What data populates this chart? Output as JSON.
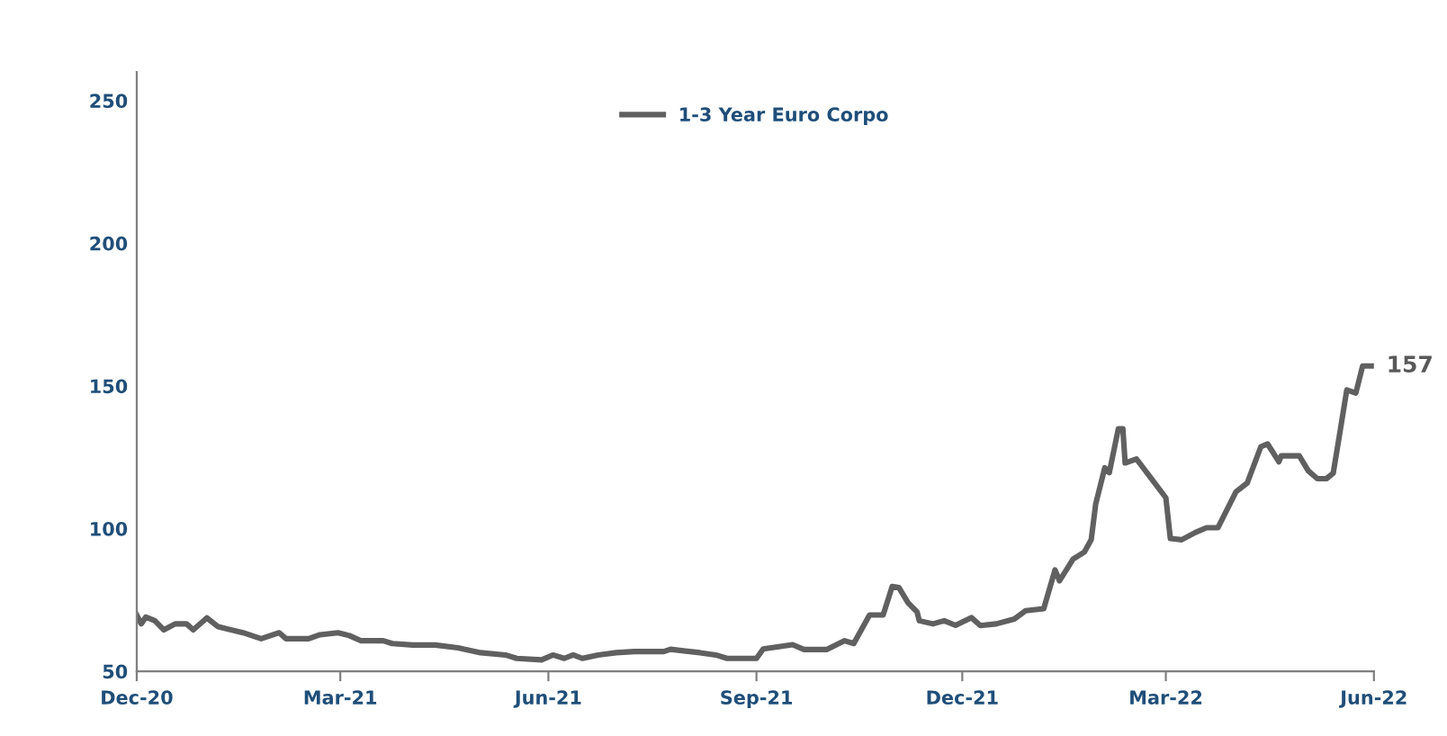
{
  "chart_data": {
    "type": "line",
    "x": [
      "2020-12-01",
      "2020-12-03",
      "2020-12-05",
      "2020-12-09",
      "2020-12-13",
      "2020-12-18",
      "2020-12-23",
      "2020-12-26",
      "2021-01-01",
      "2021-01-06",
      "2021-01-17",
      "2021-01-25",
      "2021-02-02",
      "2021-02-05",
      "2021-02-15",
      "2021-02-20",
      "2021-02-28",
      "2021-03-05",
      "2021-03-10",
      "2021-03-20",
      "2021-03-24",
      "2021-04-02",
      "2021-04-12",
      "2021-04-22",
      "2021-05-02",
      "2021-05-13",
      "2021-05-18",
      "2021-05-29",
      "2021-06-03",
      "2021-06-08",
      "2021-06-12",
      "2021-06-16",
      "2021-06-23",
      "2021-07-01",
      "2021-07-09",
      "2021-07-22",
      "2021-07-25",
      "2021-08-07",
      "2021-08-14",
      "2021-08-19",
      "2021-09-01",
      "2021-09-04",
      "2021-09-17",
      "2021-09-22",
      "2021-10-02",
      "2021-10-10",
      "2021-10-14",
      "2021-10-21",
      "2021-10-27",
      "2021-10-31",
      "2021-11-03",
      "2021-11-07",
      "2021-11-11",
      "2021-11-12",
      "2021-11-18",
      "2021-11-23",
      "2021-11-28",
      "2021-12-05",
      "2021-12-09",
      "2021-12-16",
      "2021-12-24",
      "2021-12-29",
      "2022-01-06",
      "2022-01-11",
      "2022-01-13",
      "2022-01-19",
      "2022-01-24",
      "2022-01-27",
      "2022-01-29",
      "2022-02-02",
      "2022-02-04",
      "2022-02-08",
      "2022-02-10",
      "2022-02-11",
      "2022-02-16",
      "2022-02-21",
      "2022-03-01",
      "2022-03-03",
      "2022-03-08",
      "2022-03-14",
      "2022-03-19",
      "2022-03-24",
      "2022-04-01",
      "2022-04-06",
      "2022-04-12",
      "2022-04-15",
      "2022-04-20",
      "2022-04-21",
      "2022-04-29",
      "2022-05-03",
      "2022-05-07",
      "2022-05-11",
      "2022-05-14",
      "2022-05-17",
      "2022-05-20",
      "2022-05-24",
      "2022-05-27",
      "2022-06-01"
    ],
    "series": [
      {
        "name": "1-3 Year Euro Corpo",
        "color": "#606060",
        "values": [
          69.7,
          66.6,
          69,
          67.7,
          64.5,
          66.6,
          66.6,
          64.5,
          68.7,
          65.6,
          63.5,
          61.4,
          63.5,
          61.4,
          61.4,
          62.8,
          63.5,
          62.5,
          60.7,
          60.7,
          59.7,
          59.2,
          59.2,
          58.2,
          56.5,
          55.7,
          54.5,
          54,
          55.7,
          54.5,
          55.7,
          54.5,
          55.7,
          56.5,
          56.9,
          56.9,
          57.7,
          56.5,
          55.7,
          54.5,
          54.5,
          57.8,
          59.3,
          57.6,
          57.6,
          60.7,
          59.7,
          69.7,
          69.7,
          79.7,
          79.3,
          74,
          70.8,
          67.7,
          66.6,
          67.7,
          66.1,
          68.8,
          66,
          66.6,
          68.3,
          71.2,
          71.9,
          85.5,
          81.7,
          89.3,
          91.8,
          96.1,
          108.7,
          121.3,
          119.6,
          135,
          135,
          123,
          124.4,
          119.2,
          110.8,
          96.5,
          96.1,
          98.6,
          100.3,
          100.3,
          112.9,
          116,
          128.7,
          129.7,
          123.4,
          125.5,
          125.5,
          120.2,
          117.5,
          117.5,
          119.4,
          133.9,
          148.6,
          147.5,
          157,
          157
        ]
      }
    ],
    "xlim": [
      "2020-12-01",
      "2022-06-01"
    ],
    "xticks": [
      {
        "value": "2020-12-01",
        "label": "Dec-20"
      },
      {
        "value": "2021-03-01",
        "label": "Mar-21"
      },
      {
        "value": "2021-06-01",
        "label": "Jun-21"
      },
      {
        "value": "2021-09-01",
        "label": "Sep-21"
      },
      {
        "value": "2021-12-01",
        "label": "Dec-21"
      },
      {
        "value": "2022-03-01",
        "label": "Mar-22"
      },
      {
        "value": "2022-06-01",
        "label": "Jun-22"
      }
    ],
    "ylim": [
      50,
      260
    ],
    "yticks": [
      50,
      100,
      150,
      200,
      250
    ],
    "annotations": [
      {
        "text": "157",
        "x": "2022-06-01",
        "y": 157
      }
    ],
    "legend": "top",
    "grid": false,
    "marker": "none",
    "line_style": "solid"
  }
}
